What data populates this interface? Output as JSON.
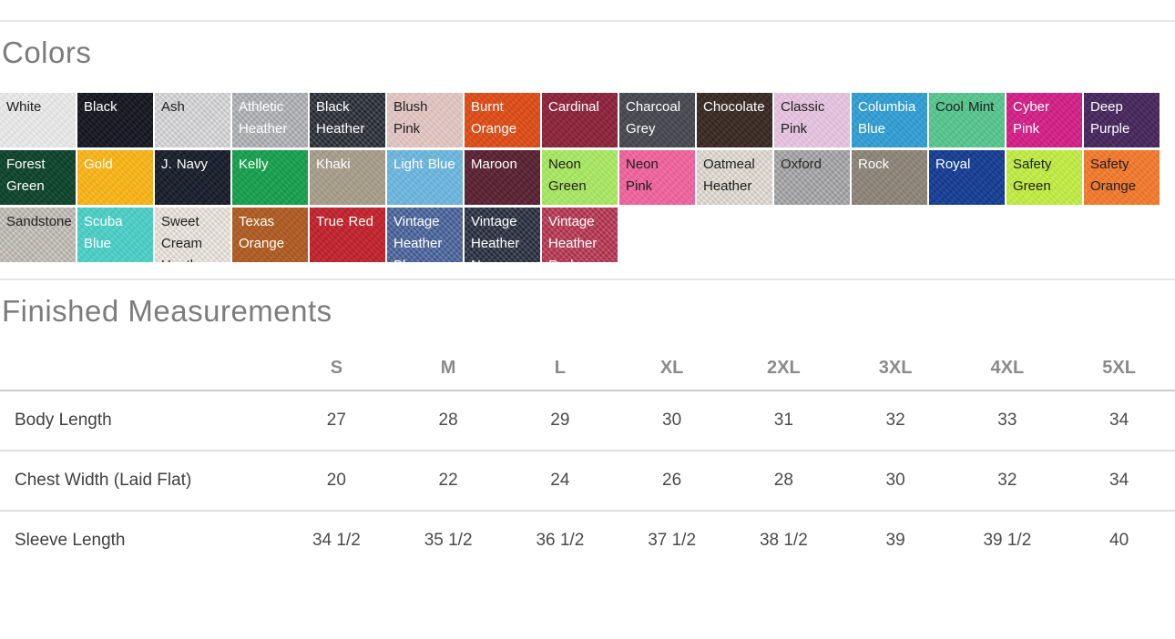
{
  "colors_section": {
    "title": "Colors",
    "swatches": [
      {
        "label": "White",
        "bg": "#ebebeb",
        "label_color": "#1f1f1f",
        "heathered": false
      },
      {
        "label": "Black",
        "bg": "#13151e",
        "label_color": "#ffffff",
        "heathered": false
      },
      {
        "label": "Ash",
        "bg": "#dcdcdf",
        "label_color": "#1f1f1f",
        "heathered": true
      },
      {
        "label": "Athletic Heather",
        "bg": "#b2b4b8",
        "label_color": "#ffffff",
        "heathered": true
      },
      {
        "label": "Black Heather",
        "bg": "#262b34",
        "label_color": "#ffffff",
        "heathered": true
      },
      {
        "label": "Blush Pink",
        "bg": "#e4c7c3",
        "label_color": "#1f1f1f",
        "heathered": false
      },
      {
        "label": "Burnt Orange",
        "bg": "#df4b15",
        "label_color": "#ffffff",
        "heathered": false
      },
      {
        "label": "Cardinal",
        "bg": "#8c2138",
        "label_color": "#ffffff",
        "heathered": false
      },
      {
        "label": "Charcoal Grey",
        "bg": "#44474d",
        "label_color": "#ffffff",
        "heathered": false
      },
      {
        "label": "Chocolate",
        "bg": "#362720",
        "label_color": "#ffffff",
        "heathered": false
      },
      {
        "label": "Classic Pink",
        "bg": "#e8c5e2",
        "label_color": "#1f1f1f",
        "heathered": false
      },
      {
        "label": "Columbia Blue",
        "bg": "#2f9ed5",
        "label_color": "#ffffff",
        "heathered": false
      },
      {
        "label": "Cool Mint",
        "bg": "#55c78e",
        "label_color": "#1f1f1f",
        "heathered": false
      },
      {
        "label": "Cyber Pink",
        "bg": "#d41d86",
        "label_color": "#ffffff",
        "heathered": false
      },
      {
        "label": "Deep Purple",
        "bg": "#45245b",
        "label_color": "#ffffff",
        "heathered": false
      },
      {
        "label": "Forest Green",
        "bg": "#0a4229",
        "label_color": "#ffffff",
        "heathered": false
      },
      {
        "label": "Gold",
        "bg": "#fcb515",
        "label_color": "#ffffff",
        "heathered": false
      },
      {
        "label": "J. Navy",
        "bg": "#161b29",
        "label_color": "#ffffff",
        "heathered": false
      },
      {
        "label": "Kelly",
        "bg": "#14a04b",
        "label_color": "#ffffff",
        "heathered": false
      },
      {
        "label": "Khaki",
        "bg": "#a89e8a",
        "label_color": "#ffffff",
        "heathered": false
      },
      {
        "label": "Light Blue",
        "bg": "#6cb8e1",
        "label_color": "#ffffff",
        "heathered": false
      },
      {
        "label": "Maroon",
        "bg": "#581f30",
        "label_color": "#ffffff",
        "heathered": false
      },
      {
        "label": "Neon Green",
        "bg": "#a9ea62",
        "label_color": "#1f1f1f",
        "heathered": false
      },
      {
        "label": "Neon Pink",
        "bg": "#f2639f",
        "label_color": "#1f1f1f",
        "heathered": false
      },
      {
        "label": "Oatmeal Heather",
        "bg": "#e6e1d7",
        "label_color": "#1f1f1f",
        "heathered": true
      },
      {
        "label": "Oxford",
        "bg": "#a7a7a9",
        "label_color": "#2a2a2a",
        "heathered": true
      },
      {
        "label": "Rock",
        "bg": "#8c8478",
        "label_color": "#ffffff",
        "heathered": false
      },
      {
        "label": "Royal",
        "bg": "#133b94",
        "label_color": "#ffffff",
        "heathered": false
      },
      {
        "label": "Safety Green",
        "bg": "#c3ee43",
        "label_color": "#1f1f1f",
        "heathered": false
      },
      {
        "label": "Safety Orange",
        "bg": "#f5792a",
        "label_color": "#1f1f1f",
        "heathered": false
      },
      {
        "label": "Sandstone",
        "bg": "#c6c0b9",
        "label_color": "#1f1f1f",
        "heathered": true
      },
      {
        "label": "Scuba Blue",
        "bg": "#4bd1c8",
        "label_color": "#ffffff",
        "heathered": false
      },
      {
        "label": "Sweet Cream Heather",
        "bg": "#f0ebe2",
        "label_color": "#1f1f1f",
        "heathered": true
      },
      {
        "label": "Texas Orange",
        "bg": "#b05b20",
        "label_color": "#ffffff",
        "heathered": false
      },
      {
        "label": "True Red",
        "bg": "#c2202a",
        "label_color": "#ffffff",
        "heathered": false
      },
      {
        "label": "Vintage Heather Blue",
        "bg": "#47639d",
        "label_color": "#ffffff",
        "heathered": true
      },
      {
        "label": "Vintage Heather Navy",
        "bg": "#252c3e",
        "label_color": "#ffffff",
        "heathered": true
      },
      {
        "label": "Vintage Heather Red",
        "bg": "#ba3350",
        "label_color": "#ffffff",
        "heathered": true
      }
    ]
  },
  "measurements_section": {
    "title": "Finished Measurements",
    "columns": [
      "S",
      "M",
      "L",
      "XL",
      "2XL",
      "3XL",
      "4XL",
      "5XL"
    ],
    "rows": [
      {
        "label": "Body Length",
        "values": [
          "27",
          "28",
          "29",
          "30",
          "31",
          "32",
          "33",
          "34"
        ]
      },
      {
        "label": "Chest Width (Laid Flat)",
        "values": [
          "20",
          "22",
          "24",
          "26",
          "28",
          "30",
          "32",
          "34"
        ]
      },
      {
        "label": "Sleeve Length",
        "values": [
          "34 1/2",
          "35 1/2",
          "36 1/2",
          "37 1/2",
          "38 1/2",
          "39",
          "39 1/2",
          "40"
        ]
      }
    ]
  }
}
